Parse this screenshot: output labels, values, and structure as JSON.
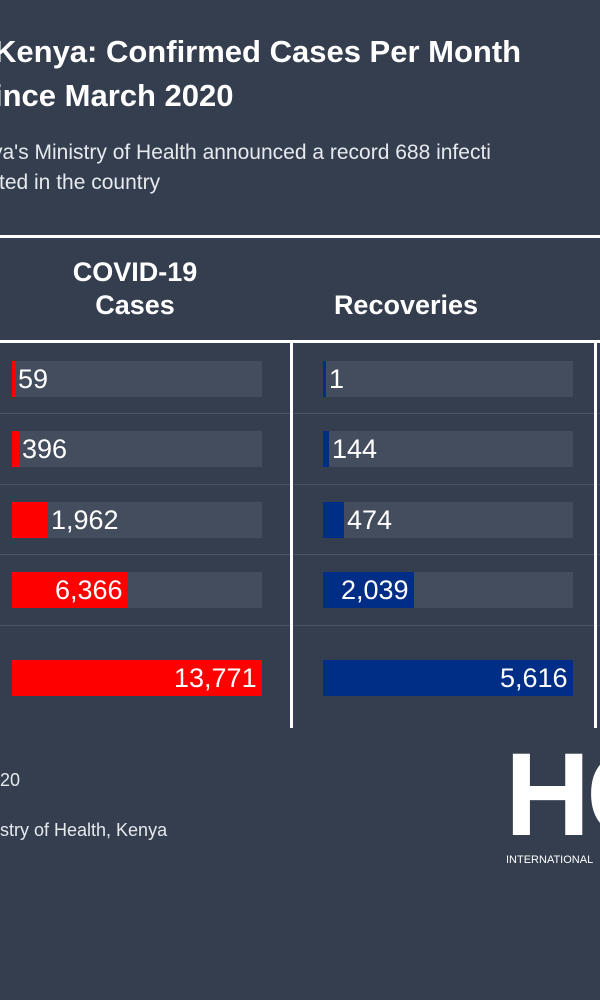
{
  "header": {
    "title": "Kenya: Confirmed Cases Per Month\nince March 2020",
    "subtitle": "ya's Ministry of Health announced a record 688 infecti\nrted in the country"
  },
  "table": {
    "col_cases": "COVID-19\nCases",
    "col_recoveries": "Recoveries"
  },
  "chart_data": {
    "type": "bar",
    "title": "Kenya: Confirmed Cases Per Month ince March 2020",
    "series": [
      {
        "name": "COVID-19 Cases",
        "values": [
          59,
          396,
          1962,
          6366,
          13771
        ],
        "labels": [
          "59",
          "396",
          "1,962",
          "6,366",
          "13,771"
        ],
        "color": "#ff0000"
      },
      {
        "name": "Recoveries",
        "values": [
          1,
          144,
          474,
          2039,
          5616
        ],
        "labels": [
          "1",
          "144",
          "474",
          "2,039",
          "5,616"
        ],
        "color": "#002d86"
      }
    ],
    "max": [
      13771,
      5616
    ],
    "track_color": "#434d5d",
    "grid": false
  },
  "footer": {
    "date": "20",
    "source": "stry of Health, Kenya",
    "logo_text": "HC",
    "logo_sub": "INTERNATIONAL"
  },
  "colors": {
    "background": "#343e4e",
    "cases": "#ff0000",
    "recoveries": "#002d86"
  }
}
